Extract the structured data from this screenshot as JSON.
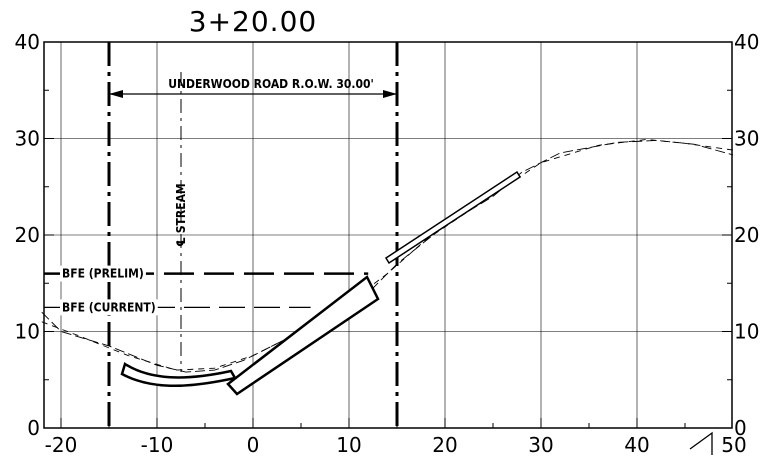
{
  "station_label": "3+20.00",
  "row_label": "UNDERWOOD ROAD R.O.W. 30.00'",
  "stream_label": "℄ STREAM",
  "bfe_prelim_label": "BFE (PRELIM)",
  "bfe_current_label": "BFE (CURRENT)",
  "axes": {
    "x_ticks": [
      "-20",
      "-10",
      "0",
      "10",
      "20",
      "30",
      "40",
      "50"
    ],
    "y_ticks_left": [
      "0",
      "10",
      "20",
      "30",
      "40"
    ],
    "y_ticks_right": [
      "0",
      "10",
      "20",
      "30",
      "40"
    ]
  },
  "chart_data": {
    "type": "line",
    "title": "3+20.00",
    "xlim": [
      -22,
      50
    ],
    "ylim": [
      0,
      40
    ],
    "grid": true,
    "row_limits_x": [
      -15,
      15
    ],
    "stream_centerline_x": -7.5,
    "bfe_prelim_elevation": 16,
    "bfe_current_elevation": 12.5,
    "series": [
      {
        "x": [
          -22,
          -20,
          -15,
          -10,
          -7,
          -4,
          -1,
          3,
          7,
          12,
          15,
          20,
          25,
          28,
          32,
          38,
          42,
          46,
          50
        ],
        "y": [
          12,
          10,
          8.5,
          6.5,
          5.8,
          6,
          7,
          9,
          11,
          14,
          17,
          21,
          24,
          26.5,
          28.5,
          29.6,
          29.8,
          29.4,
          28.3
        ]
      },
      {
        "x": [
          -22,
          -18,
          -13,
          -8,
          -4,
          0,
          5,
          10,
          14,
          18,
          24,
          30,
          36,
          41,
          45,
          50
        ],
        "y": [
          11,
          9.5,
          7.5,
          6,
          6.2,
          7.5,
          10,
          13,
          16,
          19.5,
          23.5,
          27.5,
          29.3,
          29.9,
          29.5,
          28.8
        ]
      }
    ]
  }
}
